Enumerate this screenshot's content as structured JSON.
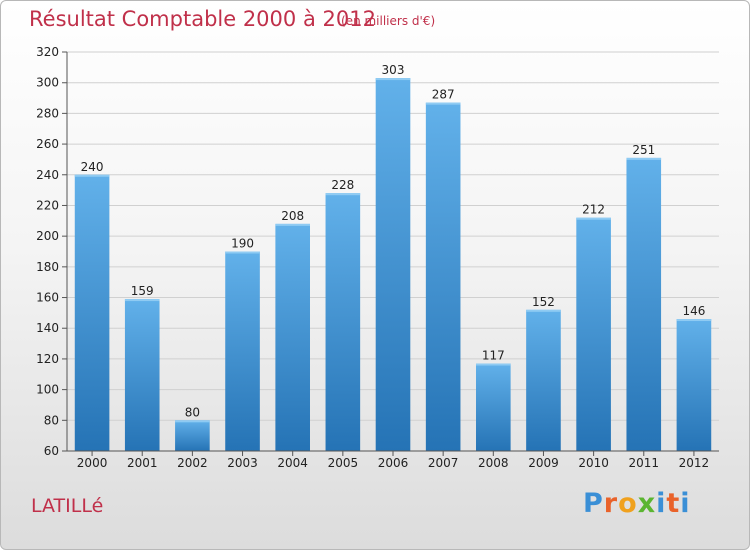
{
  "chart_data": {
    "type": "bar",
    "title": "Résultat Comptable 2000 à 2012",
    "subtitle": "(en milliers d'€)",
    "categories": [
      "2000",
      "2001",
      "2002",
      "2003",
      "2004",
      "2005",
      "2006",
      "2007",
      "2008",
      "2009",
      "2010",
      "2011",
      "2012"
    ],
    "values": [
      240,
      159,
      80,
      190,
      208,
      228,
      303,
      287,
      117,
      152,
      212,
      251,
      146
    ],
    "ylim": [
      60,
      320
    ],
    "yticks": [
      60,
      80,
      100,
      120,
      140,
      160,
      180,
      200,
      220,
      240,
      260,
      280,
      300,
      320
    ],
    "grid": true,
    "xlabel": "",
    "ylabel": ""
  },
  "location": "LATILLé",
  "brand": {
    "letters": [
      "P",
      "r",
      "o",
      "x",
      "i",
      "t",
      "i"
    ],
    "colors": [
      "#3a8fd6",
      "#e9622a",
      "#f0a11e",
      "#5bb531",
      "#3a8fd6",
      "#e9622a",
      "#3a8fd6"
    ]
  },
  "colors": {
    "bar_top": "#62b1ea",
    "bar_bottom": "#2573b5",
    "title": "#c0304a",
    "grid": "#d0d0d0"
  }
}
